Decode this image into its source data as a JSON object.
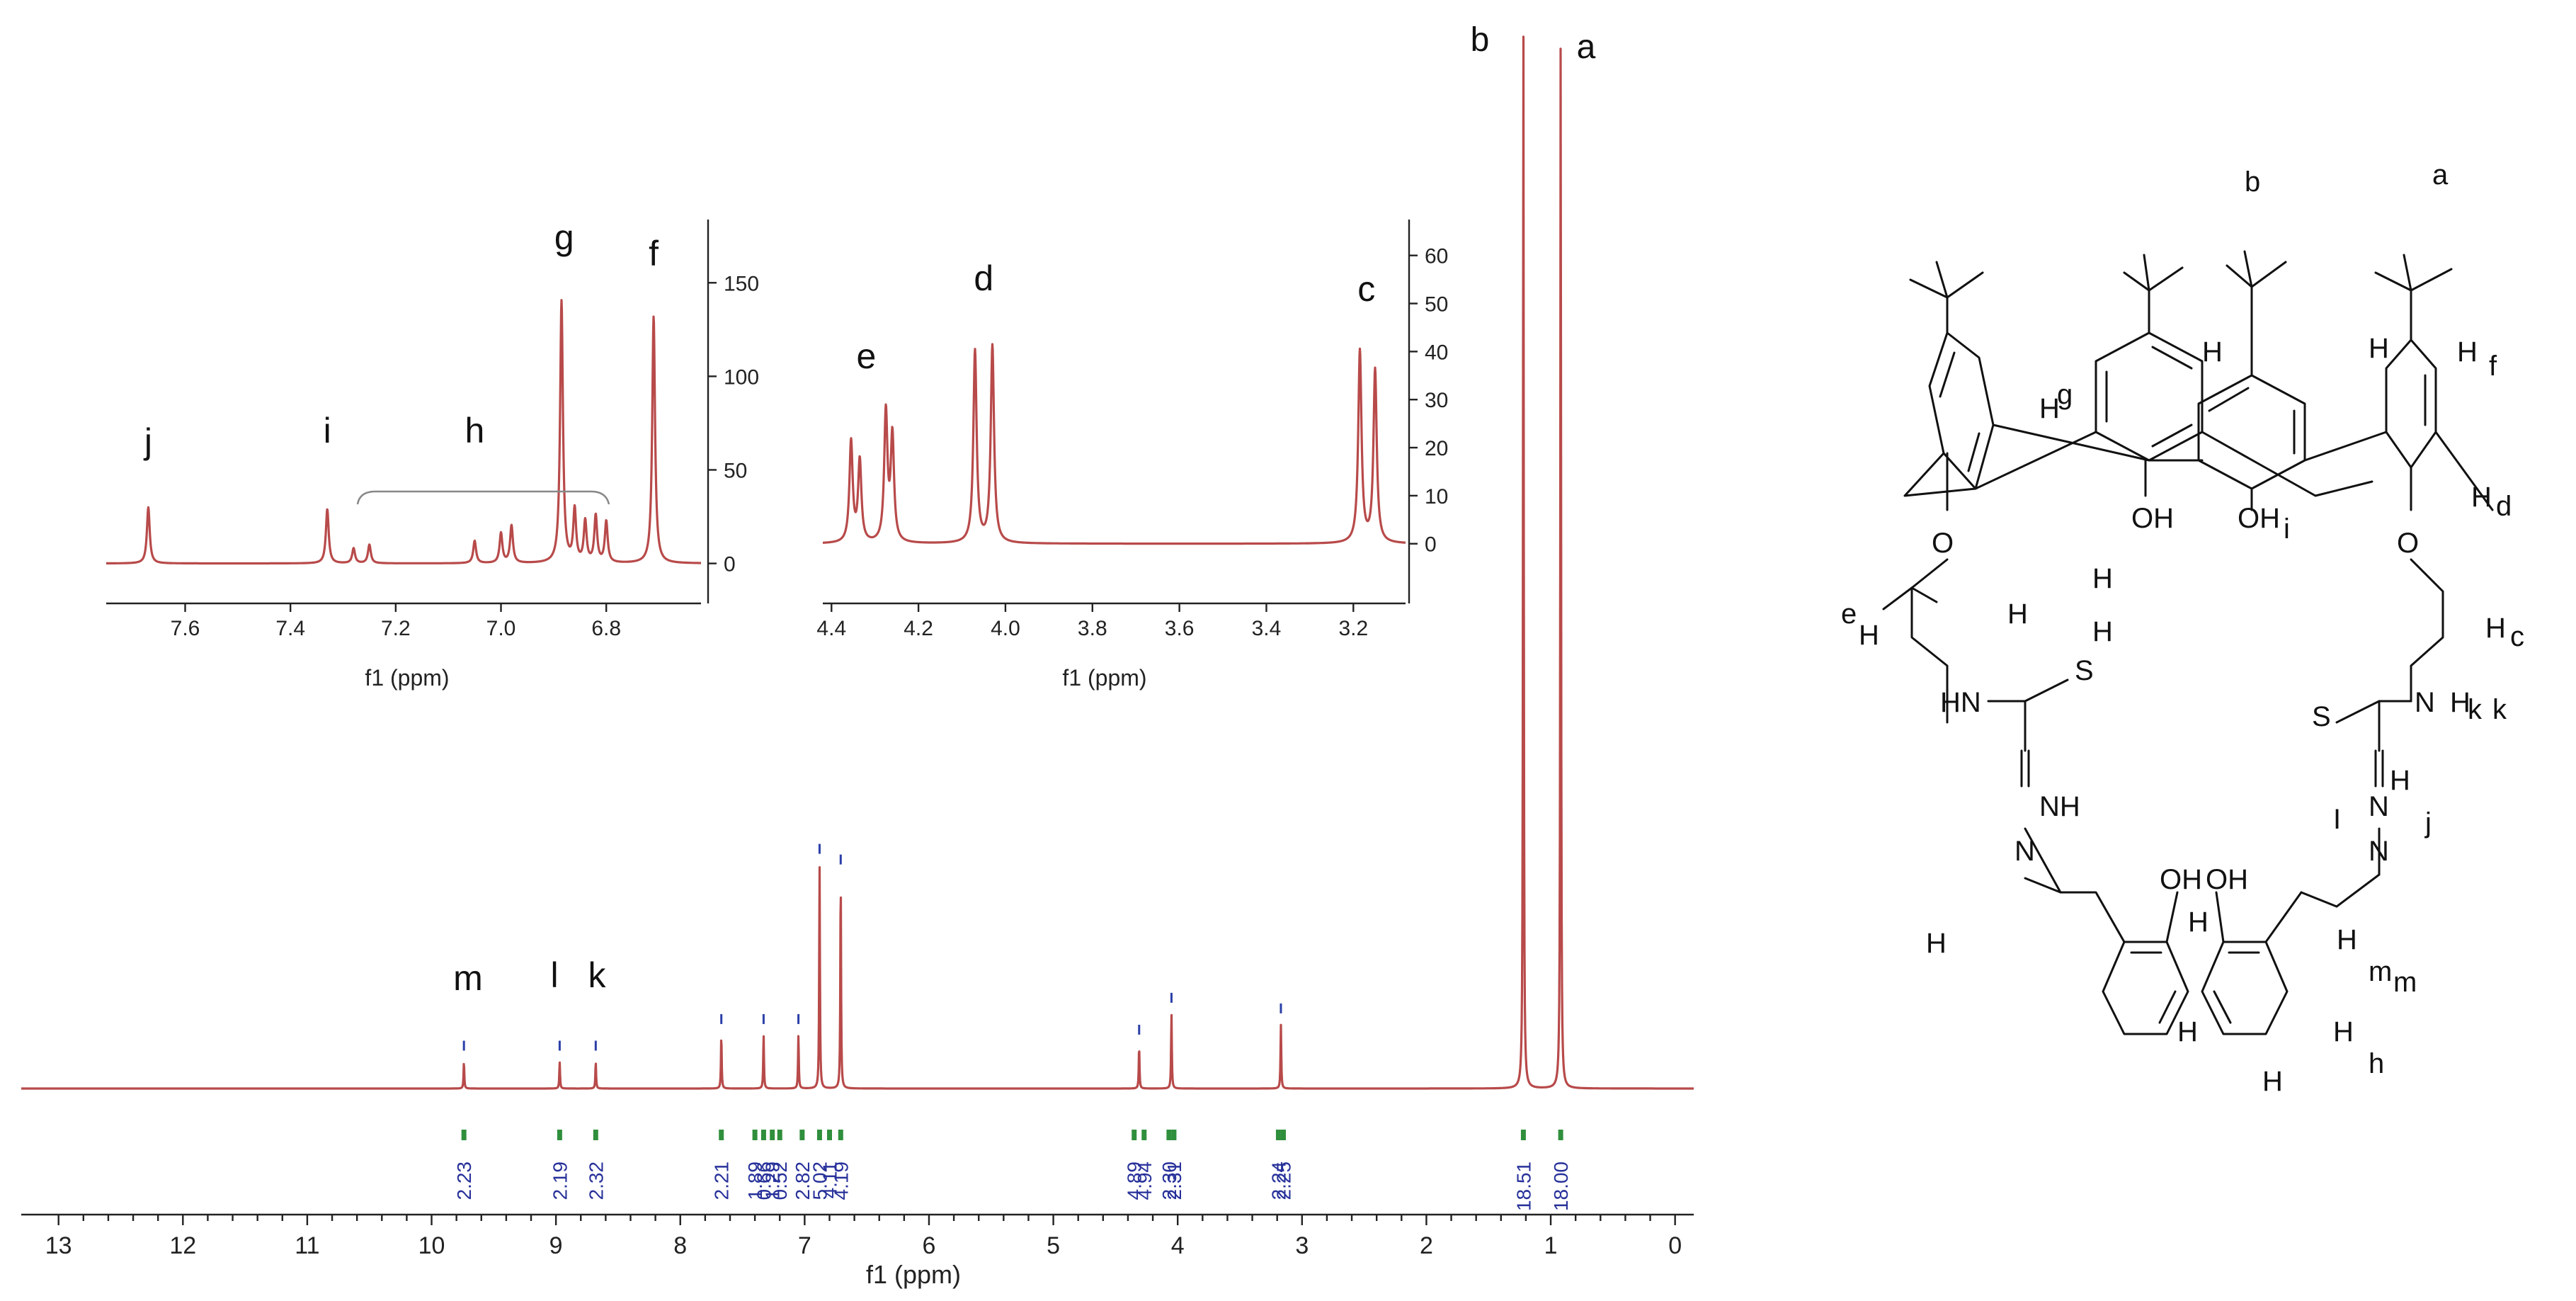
{
  "chart_data": [
    {
      "type": "line",
      "title": "",
      "xlabel": "f1 (ppm)",
      "ylabel": "",
      "x_reversed": true,
      "xlim": [
        13.3,
        -0.15
      ],
      "xticks": [
        "13",
        "12",
        "11",
        "10",
        "9",
        "8",
        "7",
        "6",
        "5",
        "4",
        "3",
        "2",
        "1",
        "0"
      ],
      "grid": false,
      "peaks": [
        {
          "label": "a",
          "shift": 0.92,
          "height": 1.0
        },
        {
          "label": "b",
          "shift": 1.22,
          "height": 1.01
        },
        {
          "label": "c",
          "shift": 3.17,
          "height": 0.06
        },
        {
          "label": "d",
          "shift": 4.05,
          "height": 0.07
        },
        {
          "label": "e",
          "shift": 4.31,
          "height": 0.04
        },
        {
          "label": "f",
          "shift": 6.71,
          "height": 0.2
        },
        {
          "label": "g",
          "shift": 6.88,
          "height": 0.21
        },
        {
          "label": "h",
          "shift": 7.05,
          "height": 0.05
        },
        {
          "label": "i",
          "shift": 7.33,
          "height": 0.05
        },
        {
          "label": "j",
          "shift": 7.67,
          "height": 0.05
        },
        {
          "label": "k",
          "shift": 8.68,
          "height": 0.025
        },
        {
          "label": "l",
          "shift": 8.97,
          "height": 0.025
        },
        {
          "label": "m",
          "shift": 9.74,
          "height": 0.025
        }
      ],
      "peak_labels": [
        "b",
        "a",
        "c",
        "d",
        "e",
        "f",
        "g",
        "h",
        "i",
        "j",
        "k",
        "l",
        "m"
      ],
      "integrals": [
        {
          "shift": 9.74,
          "value": "2.23"
        },
        {
          "shift": 8.97,
          "value": "2.19"
        },
        {
          "shift": 8.68,
          "value": "2.32"
        },
        {
          "shift": 7.67,
          "value": "2.21"
        },
        {
          "shift": 7.4,
          "value": "1.89"
        },
        {
          "shift": 7.33,
          "value": "0.66"
        },
        {
          "shift": 7.26,
          "value": "1.29"
        },
        {
          "shift": 7.2,
          "value": "0.52"
        },
        {
          "shift": 7.02,
          "value": "2.82"
        },
        {
          "shift": 6.88,
          "value": "5.02"
        },
        {
          "shift": 6.8,
          "value": "4.11"
        },
        {
          "shift": 6.71,
          "value": "4.19"
        },
        {
          "shift": 4.35,
          "value": "4.89"
        },
        {
          "shift": 4.27,
          "value": "4.94"
        },
        {
          "shift": 4.07,
          "value": "2.30"
        },
        {
          "shift": 4.03,
          "value": "2.31"
        },
        {
          "shift": 3.19,
          "value": "2.24"
        },
        {
          "shift": 3.15,
          "value": "2.25"
        },
        {
          "shift": 1.22,
          "value": "18.51"
        },
        {
          "shift": 0.92,
          "value": "18.00"
        }
      ]
    },
    {
      "type": "line",
      "title": "",
      "xlabel": "f1 (ppm)",
      "ylabel": "",
      "x_reversed": true,
      "xlim": [
        7.75,
        6.62
      ],
      "xticks": [
        "7.6",
        "7.4",
        "7.2",
        "7.0",
        "6.8"
      ],
      "ylim": [
        -10,
        180
      ],
      "yticks": [
        "150",
        "100",
        "50",
        "0"
      ],
      "labels": [
        {
          "text": "j",
          "shift": 7.67
        },
        {
          "text": "i",
          "shift": 7.33
        },
        {
          "text": "h",
          "shift": 7.05
        },
        {
          "text": "g",
          "shift": 6.88
        },
        {
          "text": "f",
          "shift": 6.71
        }
      ],
      "peaks": [
        {
          "shift": 7.67,
          "value": 30
        },
        {
          "shift": 7.33,
          "value": 29
        },
        {
          "shift": 7.28,
          "value": 8
        },
        {
          "shift": 7.25,
          "value": 10
        },
        {
          "shift": 7.05,
          "value": 12
        },
        {
          "shift": 7.0,
          "value": 16
        },
        {
          "shift": 6.98,
          "value": 20
        },
        {
          "shift": 6.885,
          "value": 140
        },
        {
          "shift": 6.86,
          "value": 28
        },
        {
          "shift": 6.84,
          "value": 22
        },
        {
          "shift": 6.82,
          "value": 25
        },
        {
          "shift": 6.8,
          "value": 22
        },
        {
          "shift": 6.71,
          "value": 132
        }
      ]
    },
    {
      "type": "line",
      "title": "",
      "xlabel": "f1 (ppm)",
      "ylabel": "",
      "x_reversed": true,
      "xlim": [
        4.42,
        3.08
      ],
      "xticks": [
        "4.4",
        "4.2",
        "4.0",
        "3.8",
        "3.6",
        "3.4",
        "3.2"
      ],
      "ylim": [
        -8,
        66
      ],
      "yticks": [
        "60",
        "50",
        "40",
        "30",
        "20",
        "10",
        "0"
      ],
      "labels": [
        {
          "text": "e",
          "shift": 4.32
        },
        {
          "text": "d",
          "shift": 4.05
        },
        {
          "text": "c",
          "shift": 3.17
        }
      ],
      "peaks": [
        {
          "shift": 4.355,
          "value": 21
        },
        {
          "shift": 4.335,
          "value": 17
        },
        {
          "shift": 4.275,
          "value": 27
        },
        {
          "shift": 4.26,
          "value": 22
        },
        {
          "shift": 4.07,
          "value": 40
        },
        {
          "shift": 4.03,
          "value": 41
        },
        {
          "shift": 3.185,
          "value": 40
        },
        {
          "shift": 3.15,
          "value": 36
        }
      ]
    }
  ],
  "structure": {
    "top_labels": [
      "b",
      "a"
    ],
    "side_labels": [
      "g",
      "f",
      "e",
      "i",
      "I",
      "j",
      "k",
      "h",
      "m"
    ],
    "hydrogen_labels": [
      "H",
      "H",
      "H",
      "H",
      "H",
      "H",
      "H",
      "H",
      "H",
      "H",
      "H",
      "H",
      "H",
      "H",
      "H",
      "H",
      "H",
      "H"
    ],
    "subscripts": [
      "d",
      "c",
      "m",
      "k"
    ],
    "atoms": [
      "O",
      "O",
      "OH",
      "OH",
      "OH",
      "OH",
      "HN",
      "S",
      "S",
      "NH",
      "N",
      "N",
      "N",
      "N"
    ],
    "colors": {
      "red": "#ee1111",
      "green": "#11cc11",
      "magenta": "#dd22dd",
      "cyan": "#00d8e8"
    }
  }
}
